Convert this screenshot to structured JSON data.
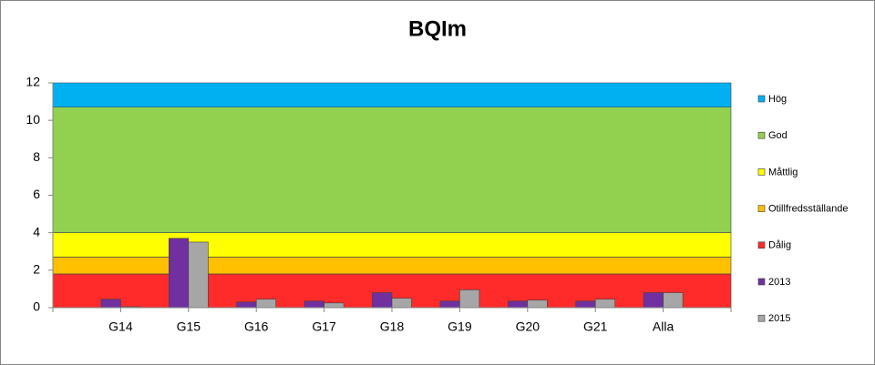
{
  "chart_data": {
    "type": "bar",
    "title": "BQIm",
    "categories": [
      null,
      "G14",
      "G15",
      "G16",
      "G17",
      "G18",
      "G19",
      "G20",
      "G21",
      "Alla",
      null
    ],
    "ylim": [
      0,
      12
    ],
    "yticks": [
      0,
      2,
      4,
      6,
      8,
      10,
      12
    ],
    "legend": "right",
    "series": [
      {
        "name": "Hög",
        "type": "area",
        "color": "#00b0f0",
        "values": [
          1.3,
          1.3,
          1.3,
          1.3,
          1.3,
          1.3,
          1.3,
          1.3,
          1.3,
          1.3,
          1.3
        ]
      },
      {
        "name": "God",
        "type": "area",
        "color": "#92d050",
        "values": [
          6.7,
          6.7,
          6.7,
          6.7,
          6.7,
          6.7,
          6.7,
          6.7,
          6.7,
          6.7,
          6.7
        ]
      },
      {
        "name": "Måttlig",
        "type": "area",
        "color": "#ffff00",
        "values": [
          1.3,
          1.3,
          1.3,
          1.3,
          1.3,
          1.3,
          1.3,
          1.3,
          1.3,
          1.3,
          1.3
        ]
      },
      {
        "name": "Otillfredsställande",
        "type": "area",
        "color": "#ffc000",
        "values": [
          0.9,
          0.9,
          0.9,
          0.9,
          0.9,
          0.9,
          0.9,
          0.9,
          0.9,
          0.9,
          0.9
        ]
      },
      {
        "name": "Dålig",
        "type": "area",
        "color": "#ff2b2b",
        "values": [
          1.8,
          1.8,
          1.8,
          1.8,
          1.8,
          1.8,
          1.8,
          1.8,
          1.8,
          1.8,
          1.8
        ]
      },
      {
        "name": "2013",
        "type": "bar",
        "color": "#7030a0",
        "values": [
          null,
          0.45,
          3.7,
          0.3,
          0.35,
          0.8,
          0.35,
          0.35,
          0.35,
          0.8,
          null
        ]
      },
      {
        "name": "2015",
        "type": "bar",
        "color": "#a6a6a6",
        "values": [
          null,
          0.05,
          3.5,
          0.45,
          0.25,
          0.5,
          0.95,
          0.4,
          0.45,
          0.8,
          null
        ]
      }
    ]
  }
}
